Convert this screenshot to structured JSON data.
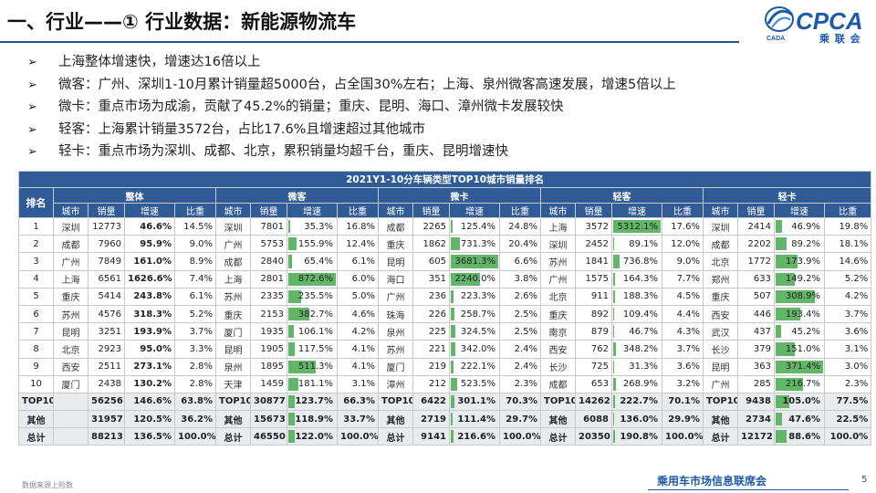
{
  "title": "一、行业——① 行业数据：新能源物流车",
  "logo": {
    "text": "CPCA",
    "sub": "乘 联 会",
    "icon_text": "CADA"
  },
  "bullet_icon": "arrow-bullet-icon",
  "bullets": [
    "上海整体增速快，增速达16倍以上",
    "微客：广州、深圳1-10月累计销量超5000台，占全国30%左右；上海、泉州微客高速发展，增速5倍以上",
    "微卡：重点市场为成渝，贡献了45.2%的销量；重庆、昆明、海口、漳州微卡发展较快",
    "轻客：上海累计销量3572台，占比17.6%且增速超过其他城市",
    "轻卡：重点市场为深圳、成都、北京，累积销量均超千台，重庆、昆明增速快"
  ],
  "table": {
    "caption": "2021Y1-10分车辆类型TOP10城市销量排名",
    "rank_header": "排名",
    "groups": [
      "整体",
      "微客",
      "微卡",
      "轻客",
      "轻卡"
    ],
    "sub_headers": [
      "城市",
      "销量",
      "增速",
      "比重"
    ],
    "bar_color": "#62b667",
    "rows": [
      {
        "rank": "1",
        "cells": [
          [
            "深圳",
            "12773",
            "46.6%",
            "14.5%"
          ],
          [
            "深圳",
            "7801",
            "35.3%",
            "16.8%"
          ],
          [
            "成都",
            "2265",
            "125.4%",
            "24.8%"
          ],
          [
            "上海",
            "3572",
            "5312.1%",
            "17.6%"
          ],
          [
            "深圳",
            "2414",
            "46.9%",
            "19.8%"
          ]
        ]
      },
      {
        "rank": "2",
        "cells": [
          [
            "成都",
            "7960",
            "95.9%",
            "9.0%"
          ],
          [
            "广州",
            "5753",
            "155.9%",
            "12.4%"
          ],
          [
            "重庆",
            "1862",
            "731.3%",
            "20.4%"
          ],
          [
            "深圳",
            "2452",
            "89.1%",
            "12.0%"
          ],
          [
            "成都",
            "2202",
            "89.2%",
            "18.1%"
          ]
        ]
      },
      {
        "rank": "3",
        "cells": [
          [
            "广州",
            "7849",
            "161.0%",
            "8.9%"
          ],
          [
            "成都",
            "2840",
            "65.4%",
            "6.1%"
          ],
          [
            "昆明",
            "605",
            "3681.3%",
            "6.6%"
          ],
          [
            "苏州",
            "1841",
            "736.8%",
            "9.0%"
          ],
          [
            "北京",
            "1772",
            "173.9%",
            "14.6%"
          ]
        ]
      },
      {
        "rank": "4",
        "cells": [
          [
            "上海",
            "6561",
            "1626.6%",
            "7.4%"
          ],
          [
            "上海",
            "2801",
            "872.6%",
            "6.0%"
          ],
          [
            "海口",
            "351",
            "2240.0%",
            "3.8%"
          ],
          [
            "广州",
            "1575",
            "164.3%",
            "7.7%"
          ],
          [
            "郑州",
            "633",
            "149.2%",
            "5.2%"
          ]
        ]
      },
      {
        "rank": "5",
        "cells": [
          [
            "重庆",
            "5414",
            "243.8%",
            "6.1%"
          ],
          [
            "苏州",
            "2335",
            "235.5%",
            "5.0%"
          ],
          [
            "广州",
            "236",
            "223.3%",
            "2.6%"
          ],
          [
            "北京",
            "911",
            "188.3%",
            "4.5%"
          ],
          [
            "重庆",
            "507",
            "308.9%",
            "4.2%"
          ]
        ]
      },
      {
        "rank": "6",
        "cells": [
          [
            "苏州",
            "4576",
            "318.3%",
            "5.2%"
          ],
          [
            "重庆",
            "2153",
            "382.7%",
            "4.6%"
          ],
          [
            "珠海",
            "226",
            "258.7%",
            "2.5%"
          ],
          [
            "重庆",
            "892",
            "109.4%",
            "4.4%"
          ],
          [
            "西安",
            "446",
            "193.4%",
            "3.7%"
          ]
        ]
      },
      {
        "rank": "7",
        "cells": [
          [
            "昆明",
            "3251",
            "193.9%",
            "3.7%"
          ],
          [
            "厦门",
            "1935",
            "106.1%",
            "4.2%"
          ],
          [
            "泉州",
            "225",
            "324.5%",
            "2.5%"
          ],
          [
            "南京",
            "879",
            "46.7%",
            "4.3%"
          ],
          [
            "武汉",
            "437",
            "45.2%",
            "3.6%"
          ]
        ]
      },
      {
        "rank": "8",
        "cells": [
          [
            "北京",
            "2923",
            "95.0%",
            "3.3%"
          ],
          [
            "昆明",
            "1905",
            "117.5%",
            "4.1%"
          ],
          [
            "苏州",
            "221",
            "342.0%",
            "2.4%"
          ],
          [
            "西安",
            "762",
            "348.2%",
            "3.7%"
          ],
          [
            "长沙",
            "379",
            "151.0%",
            "3.1%"
          ]
        ]
      },
      {
        "rank": "9",
        "cells": [
          [
            "西安",
            "2511",
            "273.1%",
            "2.8%"
          ],
          [
            "泉州",
            "1895",
            "511.3%",
            "4.1%"
          ],
          [
            "厦门",
            "219",
            "222.1%",
            "2.4%"
          ],
          [
            "长沙",
            "725",
            "31.3%",
            "3.6%"
          ],
          [
            "昆明",
            "363",
            "371.4%",
            "3.0%"
          ]
        ]
      },
      {
        "rank": "10",
        "cells": [
          [
            "厦门",
            "2438",
            "130.2%",
            "2.8%"
          ],
          [
            "天津",
            "1459",
            "181.1%",
            "3.1%"
          ],
          [
            "漳州",
            "212",
            "523.5%",
            "2.3%"
          ],
          [
            "成都",
            "653",
            "268.9%",
            "3.2%"
          ],
          [
            "广州",
            "285",
            "216.7%",
            "2.3%"
          ]
        ]
      }
    ],
    "summary": [
      {
        "rank": "TOP10",
        "cells": [
          [
            "",
            "56256",
            "146.6%",
            "63.8%"
          ],
          [
            "TOP10",
            "30877",
            "123.7%",
            "66.3%"
          ],
          [
            "TOP10",
            "6422",
            "301.1%",
            "70.3%"
          ],
          [
            "TOP10",
            "14262",
            "222.7%",
            "70.1%"
          ],
          [
            "TOP10",
            "9438",
            "105.0%",
            "77.5%"
          ]
        ]
      },
      {
        "rank": "其他",
        "cells": [
          [
            "",
            "31957",
            "120.5%",
            "36.2%"
          ],
          [
            "其他",
            "15673",
            "118.9%",
            "33.7%"
          ],
          [
            "其他",
            "2719",
            "111.4%",
            "29.7%"
          ],
          [
            "其他",
            "6088",
            "136.0%",
            "29.9%"
          ],
          [
            "其他",
            "2734",
            "47.6%",
            "22.5%"
          ]
        ]
      },
      {
        "rank": "总计",
        "cells": [
          [
            "",
            "88213",
            "136.5%",
            "100.0%"
          ],
          [
            "总计",
            "46550",
            "122.0%",
            "100.0%"
          ],
          [
            "总计",
            "9141",
            "216.6%",
            "100.0%"
          ],
          [
            "总计",
            "20350",
            "190.8%",
            "100.0%"
          ],
          [
            "总计",
            "12172",
            "88.6%",
            "100.0%"
          ]
        ]
      }
    ]
  },
  "footer": {
    "source": "数据来源上险数",
    "org": "乘用车市场信息联席会",
    "page": "5"
  }
}
